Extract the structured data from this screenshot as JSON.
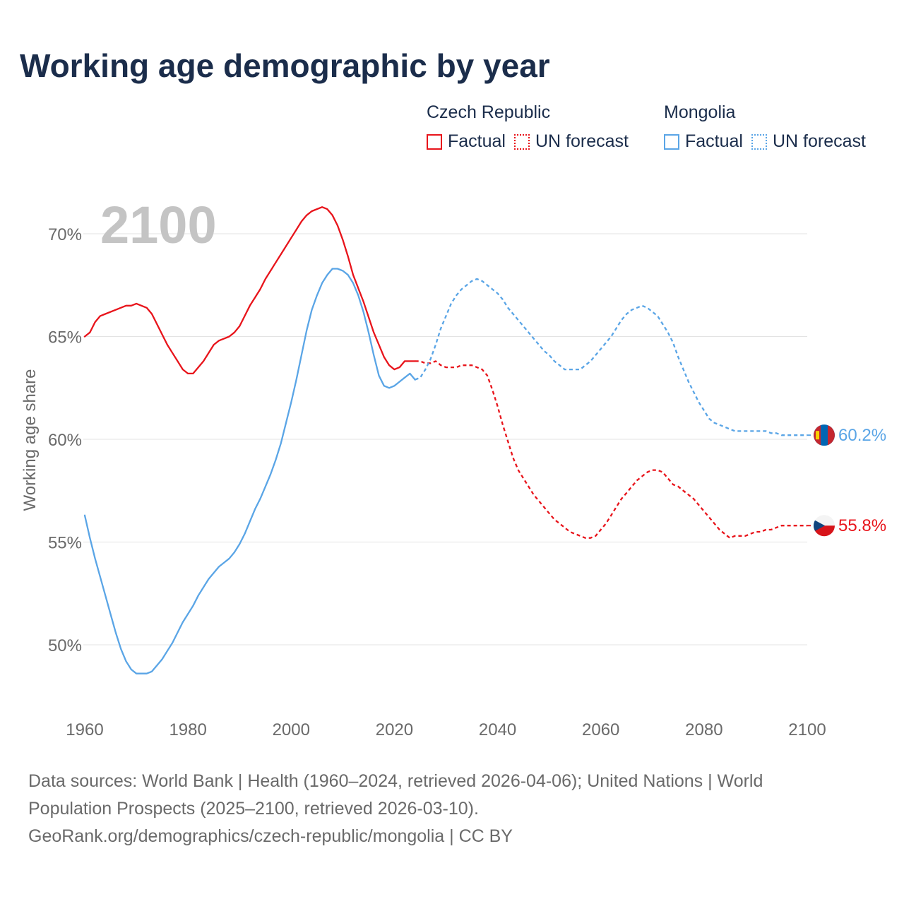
{
  "title": "Working age demographic by year",
  "legend": {
    "groups": [
      {
        "country": "Czech Republic",
        "factual": "Factual",
        "forecast": "UN forecast",
        "color": "#e8141b"
      },
      {
        "country": "Mongolia",
        "factual": "Factual",
        "forecast": "UN forecast",
        "color": "#5aa5e6"
      }
    ]
  },
  "year_watermark": "2100",
  "footer": {
    "line1": "Data sources: World Bank | Health (1960–2024, retrieved 2026-04-06); United Nations | World",
    "line2": "Population Prospects (2025–2100, retrieved 2026-03-10).",
    "line3": "GeoRank.org/demographics/czech-republic/mongolia | CC BY"
  },
  "chart_data": {
    "type": "line",
    "title": "Working age demographic by year",
    "xlabel": "",
    "ylabel": "Working age share",
    "xlim": [
      1960,
      2100
    ],
    "ylim": [
      47,
      73
    ],
    "x_ticks": [
      1960,
      1980,
      2000,
      2020,
      2040,
      2060,
      2080,
      2100
    ],
    "y_ticks": [
      50,
      55,
      60,
      65,
      70
    ],
    "y_tick_labels": [
      "50%",
      "55%",
      "60%",
      "65%",
      "70%"
    ],
    "x_tick_labels": [
      "1960",
      "1980",
      "2000",
      "2020",
      "2040",
      "2060",
      "2080",
      "2100"
    ],
    "grid": true,
    "series": [
      {
        "name": "Czech Republic",
        "color": "#e8141b",
        "end_label": "55.8%",
        "factual": {
          "x": [
            1960,
            1961,
            1962,
            1963,
            1964,
            1966,
            1968,
            1969,
            1970,
            1972,
            1973,
            1974,
            1975,
            1976,
            1977,
            1978,
            1979,
            1980,
            1981,
            1982,
            1983,
            1984,
            1985,
            1986,
            1987,
            1988,
            1989,
            1990,
            1991,
            1992,
            1993,
            1994,
            1995,
            1996,
            1997,
            1998,
            1999,
            2000,
            2001,
            2002,
            2003,
            2004,
            2006,
            2007,
            2008,
            2009,
            2010,
            2011,
            2012,
            2014,
            2016,
            2018,
            2019,
            2020,
            2021,
            2022,
            2023,
            2024
          ],
          "y": [
            65.0,
            65.2,
            65.7,
            66.0,
            66.1,
            66.3,
            66.5,
            66.5,
            66.6,
            66.4,
            66.1,
            65.6,
            65.1,
            64.6,
            64.2,
            63.8,
            63.4,
            63.2,
            63.2,
            63.5,
            63.8,
            64.2,
            64.6,
            64.8,
            64.9,
            65.0,
            65.2,
            65.5,
            66.0,
            66.5,
            66.9,
            67.3,
            67.8,
            68.2,
            68.6,
            69.0,
            69.4,
            69.8,
            70.2,
            70.6,
            70.9,
            71.1,
            71.3,
            71.2,
            70.9,
            70.4,
            69.7,
            68.9,
            68.0,
            66.7,
            65.2,
            64.0,
            63.6,
            63.4,
            63.5,
            63.8,
            63.8,
            63.8
          ]
        },
        "forecast": {
          "x": [
            2024,
            2025,
            2026,
            2027,
            2028,
            2029,
            2030,
            2031,
            2032,
            2033,
            2034,
            2035,
            2036,
            2037,
            2038,
            2039,
            2040,
            2041,
            2042,
            2043,
            2044,
            2045,
            2046,
            2047,
            2048,
            2049,
            2050,
            2051,
            2052,
            2053,
            2054,
            2055,
            2056,
            2057,
            2058,
            2059,
            2060,
            2061,
            2062,
            2063,
            2064,
            2065,
            2066,
            2067,
            2068,
            2069,
            2070,
            2071,
            2072,
            2073,
            2074,
            2075,
            2076,
            2077,
            2078,
            2079,
            2080,
            2081,
            2082,
            2083,
            2084,
            2085,
            2086,
            2087,
            2088,
            2089,
            2090,
            2091,
            2092,
            2093,
            2094,
            2095,
            2096,
            2097,
            2098,
            2099,
            2100
          ],
          "y": [
            63.8,
            63.8,
            63.7,
            63.7,
            63.8,
            63.6,
            63.5,
            63.5,
            63.5,
            63.6,
            63.6,
            63.6,
            63.5,
            63.4,
            63.1,
            62.4,
            61.6,
            60.7,
            59.9,
            59.1,
            58.5,
            58.1,
            57.7,
            57.3,
            57.0,
            56.7,
            56.4,
            56.1,
            55.9,
            55.7,
            55.5,
            55.4,
            55.3,
            55.2,
            55.2,
            55.3,
            55.6,
            55.9,
            56.3,
            56.7,
            57.1,
            57.4,
            57.7,
            58.0,
            58.2,
            58.4,
            58.5,
            58.5,
            58.4,
            58.1,
            57.8,
            57.7,
            57.5,
            57.3,
            57.1,
            56.8,
            56.5,
            56.2,
            55.9,
            55.6,
            55.4,
            55.2,
            55.3,
            55.3,
            55.3,
            55.4,
            55.5,
            55.5,
            55.6,
            55.6,
            55.7,
            55.8,
            55.8,
            55.8,
            55.8,
            55.8,
            55.8
          ]
        }
      },
      {
        "name": "Mongolia",
        "color": "#5aa5e6",
        "end_label": "60.2%",
        "factual": {
          "x": [
            1960,
            1961,
            1962,
            1963,
            1964,
            1965,
            1966,
            1967,
            1968,
            1969,
            1970,
            1971,
            1972,
            1973,
            1974,
            1975,
            1976,
            1977,
            1978,
            1979,
            1980,
            1981,
            1982,
            1983,
            1984,
            1985,
            1986,
            1987,
            1988,
            1989,
            1990,
            1991,
            1992,
            1993,
            1994,
            1995,
            1996,
            1997,
            1998,
            1999,
            2000,
            2001,
            2002,
            2003,
            2004,
            2005,
            2006,
            2007,
            2008,
            2009,
            2010,
            2011,
            2012,
            2013,
            2014,
            2015,
            2016,
            2017,
            2018,
            2019,
            2020,
            2021,
            2022,
            2023,
            2024
          ],
          "y": [
            56.3,
            55.2,
            54.2,
            53.3,
            52.4,
            51.5,
            50.6,
            49.8,
            49.2,
            48.8,
            48.6,
            48.6,
            48.6,
            48.7,
            49.0,
            49.3,
            49.7,
            50.1,
            50.6,
            51.1,
            51.5,
            51.9,
            52.4,
            52.8,
            53.2,
            53.5,
            53.8,
            54.0,
            54.2,
            54.5,
            54.9,
            55.4,
            56.0,
            56.6,
            57.1,
            57.7,
            58.3,
            59.0,
            59.8,
            60.8,
            61.8,
            62.9,
            64.1,
            65.3,
            66.3,
            67.0,
            67.6,
            68.0,
            68.3,
            68.3,
            68.2,
            68.0,
            67.6,
            67.0,
            66.2,
            65.2,
            64.1,
            63.1,
            62.6,
            62.5,
            62.6,
            62.8,
            63.0,
            63.2,
            62.9
          ]
        },
        "forecast": {
          "x": [
            2024,
            2025,
            2026,
            2027,
            2028,
            2029,
            2030,
            2031,
            2032,
            2033,
            2034,
            2035,
            2036,
            2037,
            2038,
            2039,
            2040,
            2041,
            2042,
            2043,
            2044,
            2045,
            2046,
            2047,
            2048,
            2049,
            2050,
            2051,
            2052,
            2053,
            2054,
            2055,
            2056,
            2057,
            2058,
            2059,
            2060,
            2061,
            2062,
            2063,
            2064,
            2065,
            2066,
            2067,
            2068,
            2069,
            2070,
            2071,
            2072,
            2073,
            2074,
            2075,
            2076,
            2077,
            2078,
            2079,
            2080,
            2081,
            2082,
            2083,
            2084,
            2085,
            2086,
            2087,
            2088,
            2089,
            2090,
            2091,
            2092,
            2093,
            2094,
            2095,
            2096,
            2097,
            2098,
            2099,
            2100
          ],
          "y": [
            62.9,
            63.0,
            63.4,
            63.9,
            64.6,
            65.4,
            66.0,
            66.6,
            67.0,
            67.3,
            67.5,
            67.7,
            67.8,
            67.7,
            67.5,
            67.3,
            67.1,
            66.8,
            66.4,
            66.1,
            65.8,
            65.5,
            65.2,
            64.9,
            64.6,
            64.3,
            64.1,
            63.8,
            63.6,
            63.4,
            63.4,
            63.4,
            63.4,
            63.6,
            63.8,
            64.1,
            64.4,
            64.7,
            65.0,
            65.4,
            65.8,
            66.1,
            66.3,
            66.4,
            66.5,
            66.4,
            66.2,
            66.0,
            65.6,
            65.2,
            64.7,
            64.0,
            63.4,
            62.8,
            62.3,
            61.8,
            61.4,
            61.0,
            60.8,
            60.7,
            60.6,
            60.5,
            60.4,
            60.4,
            60.4,
            60.4,
            60.4,
            60.4,
            60.4,
            60.3,
            60.3,
            60.2,
            60.2,
            60.2,
            60.2,
            60.2,
            60.2
          ]
        }
      }
    ]
  }
}
